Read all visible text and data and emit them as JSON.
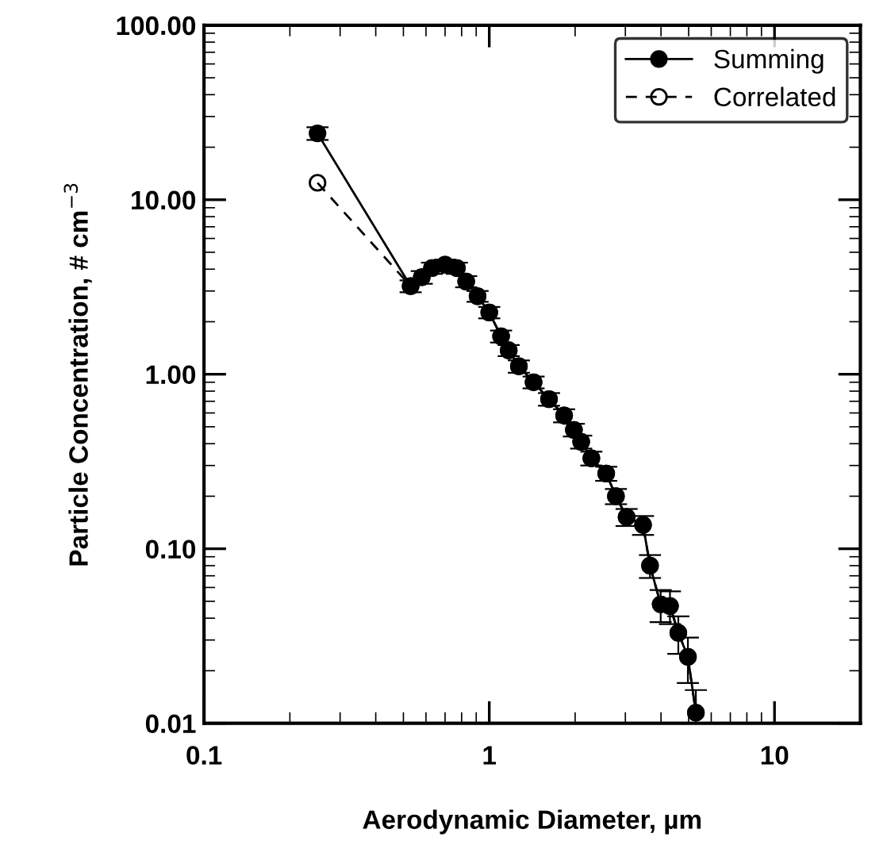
{
  "chart_data": {
    "type": "line",
    "xlabel": "Aerodynamic Diameter, µm",
    "ylabel": "Particle Concentration, # cm$^{−3}$",
    "x": [
      0.25,
      0.53,
      0.58,
      0.63,
      0.7,
      0.77,
      0.83,
      0.91,
      1.0,
      1.1,
      1.17,
      1.27,
      1.43,
      1.62,
      1.83,
      1.98,
      2.1,
      2.28,
      2.57,
      2.78,
      3.03,
      3.46,
      3.66,
      3.99,
      4.3,
      4.6,
      4.97,
      5.3
    ],
    "series": [
      {
        "name": "Correlated",
        "color": "#000000",
        "line_style": "dashed",
        "values": [
          12.5,
          3.2,
          3.6,
          4.06,
          4.24,
          4.06,
          3.4,
          2.8,
          2.26,
          1.65,
          1.37,
          1.11,
          0.9,
          0.72,
          0.58,
          0.48,
          0.41,
          0.33,
          0.27,
          0.2,
          0.152,
          0.137,
          0.08,
          0.048,
          0.047,
          0.033,
          0.024,
          0.0115
        ]
      },
      {
        "name": "Summing",
        "color": "#000000",
        "line_style": "solid",
        "values": [
          24,
          3.2,
          3.6,
          4.06,
          4.24,
          4.06,
          3.4,
          2.8,
          2.26,
          1.65,
          1.37,
          1.11,
          0.9,
          0.72,
          0.58,
          0.48,
          0.41,
          0.33,
          0.27,
          0.2,
          0.152,
          0.137,
          0.08,
          0.048,
          0.047,
          0.033,
          0.024,
          0.0115
        ],
        "errors": [
          2,
          0.25,
          0.3,
          0.3,
          0.3,
          0.3,
          0.25,
          0.2,
          0.17,
          0.13,
          0.1,
          0.09,
          0.07,
          0.06,
          0.05,
          0.04,
          0.035,
          0.03,
          0.025,
          0.02,
          0.017,
          0.017,
          0.012,
          0.01,
          0.01,
          0.008,
          0.007,
          0.004
        ]
      }
    ],
    "log": "xy",
    "marker": "circle",
    "legend": "top right",
    "grid": false,
    "xlim": [
      0.1,
      20
    ],
    "xticks": [
      0.1,
      1,
      10
    ],
    "ylim": [
      0.01,
      100
    ],
    "yticks": [
      {
        "value": 0.01,
        "label": "0.01"
      },
      {
        "value": 0.1,
        "label": "0.10"
      },
      {
        "value": 1,
        "label": "1.00"
      },
      {
        "value": 10,
        "label": "10.00"
      },
      {
        "value": 100,
        "label": "100.00"
      }
    ]
  }
}
